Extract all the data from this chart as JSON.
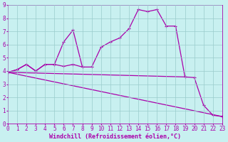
{
  "xlabel": "Windchill (Refroidissement éolien,°C)",
  "xlim": [
    0,
    23
  ],
  "ylim": [
    0,
    9
  ],
  "xticks": [
    0,
    1,
    2,
    3,
    4,
    5,
    6,
    7,
    8,
    9,
    10,
    11,
    12,
    13,
    14,
    15,
    16,
    17,
    18,
    19,
    20,
    21,
    22,
    23
  ],
  "yticks": [
    0,
    1,
    2,
    3,
    4,
    5,
    6,
    7,
    8,
    9
  ],
  "background_color": "#c8f0f0",
  "line_color": "#aa00aa",
  "grid_color": "#99cccc",
  "curve1_x": [
    0,
    1,
    2,
    3,
    4,
    5,
    6,
    7,
    8,
    9,
    10,
    11,
    12,
    13,
    14,
    15,
    16,
    17,
    18,
    19
  ],
  "curve1_y": [
    3.9,
    4.1,
    4.5,
    4.0,
    4.5,
    4.5,
    6.2,
    7.1,
    4.3,
    4.3,
    5.8,
    6.2,
    6.5,
    7.2,
    8.65,
    8.5,
    8.65,
    7.4,
    7.4,
    3.55
  ],
  "curve2_x": [
    0,
    1,
    2,
    3,
    4,
    5,
    6,
    7,
    8
  ],
  "curve2_y": [
    3.9,
    4.1,
    4.5,
    4.0,
    4.5,
    4.5,
    4.35,
    4.5,
    4.3
  ],
  "curve3_x": [
    0,
    19,
    20,
    21,
    22,
    23
  ],
  "curve3_y": [
    3.9,
    3.55,
    3.5,
    1.4,
    0.65,
    0.55
  ],
  "curve4_x": [
    0,
    23
  ],
  "curve4_y": [
    3.9,
    0.55
  ],
  "tick_fontsize": 5.5,
  "label_fontsize": 6.0,
  "line_width": 0.9,
  "marker_size": 3.0
}
